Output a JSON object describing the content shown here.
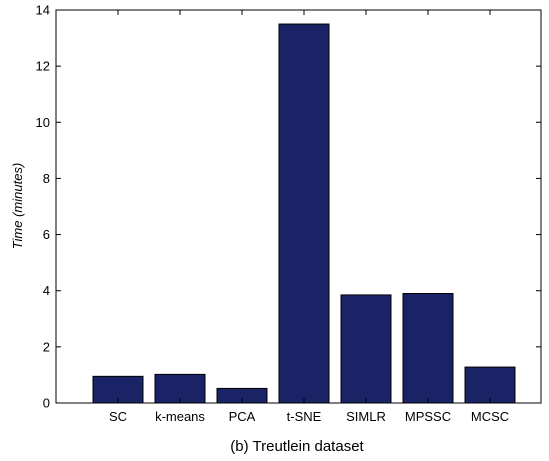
{
  "chart_data": {
    "type": "bar",
    "categories": [
      "SC",
      "k-means",
      "PCA",
      "t-SNE",
      "SIMLR",
      "MPSSC",
      "MCSC"
    ],
    "values": [
      0.95,
      1.02,
      0.52,
      13.5,
      3.85,
      3.9,
      1.28
    ],
    "title": "",
    "xlabel": "",
    "ylabel": "Time (minutes)",
    "ylim": [
      0,
      14
    ],
    "yticks": [
      0,
      2,
      4,
      6,
      8,
      10,
      12,
      14
    ],
    "grid": false,
    "bar_color": "#1a2366",
    "bar_edge_color": "#000000"
  },
  "caption": "(b) Treutlein dataset"
}
